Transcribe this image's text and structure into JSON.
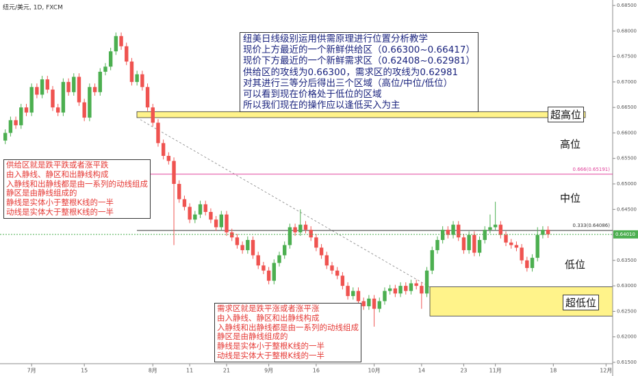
{
  "chart_data": {
    "type": "candlestick",
    "title": "纽元/美元, 1D, FXCM",
    "open": [
      0.6585,
      0.66,
      0.6625,
      0.6615,
      0.665,
      0.664,
      0.669,
      0.6675,
      0.6705,
      0.6685,
      0.665,
      0.664,
      0.67,
      0.668,
      0.671,
      0.666,
      0.663,
      0.669,
      0.668,
      0.672,
      0.673,
      0.676,
      0.679,
      0.677,
      0.674,
      0.67,
      0.6715,
      0.669,
      0.665,
      0.662,
      0.658,
      0.6555,
      0.6545,
      0.65,
      0.647,
      0.6455,
      0.643,
      0.644,
      0.646,
      0.6445,
      0.643,
      0.6415,
      0.644,
      0.6405,
      0.6395,
      0.638,
      0.637,
      0.639,
      0.636,
      0.634,
      0.633,
      0.631,
      0.6345,
      0.636,
      0.638,
      0.6415,
      0.6405,
      0.642,
      0.641,
      0.6395,
      0.6375,
      0.636,
      0.634,
      0.633,
      0.632,
      0.63,
      0.628,
      0.629,
      0.627,
      0.626,
      0.6275,
      0.6255,
      0.627,
      0.629,
      0.6295,
      0.6285,
      0.63,
      0.629,
      0.6305,
      0.63,
      0.6285,
      0.633,
      0.637,
      0.639,
      0.641,
      0.64,
      0.642,
      0.6395,
      0.637,
      0.64,
      0.6365,
      0.639,
      0.641,
      0.6415,
      0.642,
      0.64,
      0.6385,
      0.638,
      0.6375,
      0.635,
      0.6335,
      0.6355,
      0.64,
      0.641
    ],
    "high": [
      0.6607,
      0.6632,
      0.6632,
      0.6657,
      0.6657,
      0.6697,
      0.6697,
      0.6712,
      0.6712,
      0.6692,
      0.6657,
      0.6707,
      0.6707,
      0.6717,
      0.6717,
      0.6667,
      0.6697,
      0.6697,
      0.6727,
      0.6737,
      0.6767,
      0.6797,
      0.6797,
      0.6777,
      0.6747,
      0.6722,
      0.6722,
      0.6697,
      0.6657,
      0.6627,
      0.6587,
      0.6562,
      0.6552,
      0.6507,
      0.6477,
      0.6462,
      0.6447,
      0.6467,
      0.6467,
      0.6452,
      0.6437,
      0.6447,
      0.6447,
      0.6412,
      0.6402,
      0.6387,
      0.6397,
      0.6397,
      0.6367,
      0.6347,
      0.6337,
      0.6352,
      0.6367,
      0.6387,
      0.6422,
      0.6422,
      0.645,
      0.6427,
      0.6417,
      0.6402,
      0.6382,
      0.6367,
      0.6347,
      0.6337,
      0.6327,
      0.6307,
      0.6297,
      0.6297,
      0.6277,
      0.6282,
      0.6282,
      0.6277,
      0.6297,
      0.6302,
      0.6302,
      0.6307,
      0.6307,
      0.6312,
      0.6312,
      0.6307,
      0.6337,
      0.6377,
      0.6397,
      0.6417,
      0.6417,
      0.6427,
      0.6427,
      0.6402,
      0.6407,
      0.6407,
      0.6397,
      0.6417,
      0.644,
      0.6465,
      0.6427,
      0.6407,
      0.6392,
      0.6387,
      0.6382,
      0.6357,
      0.6362,
      0.6415,
      0.6417,
      0.6417
    ],
    "low": [
      0.6578,
      0.6593,
      0.6608,
      0.6608,
      0.6633,
      0.6633,
      0.6668,
      0.6668,
      0.6678,
      0.6643,
      0.6633,
      0.6633,
      0.6673,
      0.6673,
      0.6653,
      0.6623,
      0.6623,
      0.6673,
      0.6673,
      0.6713,
      0.6723,
      0.6753,
      0.6763,
      0.6733,
      0.6693,
      0.6693,
      0.6683,
      0.6643,
      0.6613,
      0.6573,
      0.6548,
      0.6538,
      0.638,
      0.6463,
      0.6448,
      0.6423,
      0.6423,
      0.6433,
      0.6438,
      0.6423,
      0.6408,
      0.6408,
      0.6398,
      0.6388,
      0.6373,
      0.6363,
      0.6363,
      0.6353,
      0.6333,
      0.6323,
      0.6303,
      0.6303,
      0.6338,
      0.6353,
      0.6373,
      0.6398,
      0.6398,
      0.6403,
      0.6388,
      0.6368,
      0.6353,
      0.6333,
      0.6323,
      0.6313,
      0.6293,
      0.6273,
      0.6273,
      0.6263,
      0.6253,
      0.6253,
      0.622,
      0.6248,
      0.6263,
      0.6283,
      0.6278,
      0.6278,
      0.6283,
      0.6283,
      0.6293,
      0.6255,
      0.6278,
      0.6323,
      0.6363,
      0.6383,
      0.6393,
      0.6393,
      0.6388,
      0.6363,
      0.6363,
      0.6358,
      0.6358,
      0.6383,
      0.6403,
      0.6408,
      0.6393,
      0.6378,
      0.6373,
      0.6368,
      0.6343,
      0.6328,
      0.6328,
      0.6348,
      0.6393,
      0.6394
    ],
    "close": [
      0.66,
      0.6625,
      0.6615,
      0.665,
      0.664,
      0.669,
      0.6675,
      0.6705,
      0.6685,
      0.665,
      0.664,
      0.67,
      0.668,
      0.671,
      0.666,
      0.663,
      0.669,
      0.668,
      0.672,
      0.673,
      0.676,
      0.679,
      0.677,
      0.674,
      0.67,
      0.6715,
      0.669,
      0.665,
      0.662,
      0.658,
      0.6555,
      0.6545,
      0.65,
      0.647,
      0.6455,
      0.643,
      0.644,
      0.646,
      0.6445,
      0.643,
      0.6415,
      0.644,
      0.6405,
      0.6395,
      0.638,
      0.637,
      0.639,
      0.636,
      0.634,
      0.633,
      0.631,
      0.6345,
      0.636,
      0.638,
      0.6415,
      0.6405,
      0.642,
      0.641,
      0.6395,
      0.6375,
      0.636,
      0.634,
      0.633,
      0.632,
      0.63,
      0.628,
      0.629,
      0.627,
      0.626,
      0.6275,
      0.6255,
      0.627,
      0.629,
      0.6295,
      0.6285,
      0.63,
      0.629,
      0.6305,
      0.63,
      0.6285,
      0.633,
      0.637,
      0.639,
      0.641,
      0.64,
      0.642,
      0.6395,
      0.637,
      0.64,
      0.6365,
      0.639,
      0.641,
      0.6415,
      0.642,
      0.64,
      0.6385,
      0.638,
      0.6375,
      0.635,
      0.6335,
      0.6355,
      0.64,
      0.641,
      0.6401
    ],
    "up_color": "#4caf50",
    "down_color": "#ef5350",
    "xlim": [
      -1,
      115
    ],
    "xticks": [
      {
        "value": 5,
        "label": "7月"
      },
      {
        "value": 15,
        "label": "15"
      },
      {
        "value": 28,
        "label": "8月"
      },
      {
        "value": 35,
        "label": "11"
      },
      {
        "value": 42,
        "label": "21"
      },
      {
        "value": 50,
        "label": "9月"
      },
      {
        "value": 59,
        "label": "16"
      },
      {
        "value": 70,
        "label": "10月"
      },
      {
        "value": 79,
        "label": "14"
      },
      {
        "value": 87,
        "label": "23"
      },
      {
        "value": 93,
        "label": "11月"
      },
      {
        "value": 104,
        "label": "18"
      },
      {
        "value": 114,
        "label": "12月"
      }
    ],
    "ylim": [
      0.615,
      0.685
    ],
    "yticks": [
      {
        "value": 0.615,
        "label": "0.61500"
      },
      {
        "value": 0.62,
        "label": "0.62000"
      },
      {
        "value": 0.625,
        "label": "0.62500"
      },
      {
        "value": 0.63,
        "label": "0.63000"
      },
      {
        "value": 0.635,
        "label": "0.63500"
      },
      {
        "value": 0.64,
        "label": "0.64000"
      },
      {
        "value": 0.645,
        "label": "0.64500"
      },
      {
        "value": 0.65,
        "label": "0.65000"
      },
      {
        "value": 0.655,
        "label": "0.65500"
      },
      {
        "value": 0.66,
        "label": "0.66000"
      },
      {
        "value": 0.665,
        "label": "0.66500"
      },
      {
        "value": 0.67,
        "label": "0.67000"
      },
      {
        "value": 0.675,
        "label": "0.67500"
      },
      {
        "value": 0.68,
        "label": "0.68000"
      },
      {
        "value": 0.685,
        "label": "0.68500"
      }
    ],
    "levels": [
      {
        "value": 0.65191,
        "label": "0.666(0.65191)",
        "color": "#e0409a"
      },
      {
        "value": 0.64086,
        "label": "0.333(0.64086)",
        "color": "#333333"
      }
    ],
    "last_price": {
      "value": 0.6401,
      "label": "0.64010",
      "color": "#4caf50"
    },
    "zones": [
      {
        "low": 0.663,
        "high": 0.66417,
        "color": "#fff176"
      },
      {
        "low": 0.62408,
        "high": 0.62981,
        "color": "#fff176"
      }
    ],
    "zone_labels": [
      "超高位",
      "高位",
      "中位",
      "低位",
      "超低位"
    ],
    "notes": {
      "analysis": [
        "纽美日线级别运用供需原理进行位置分析教学",
        "现价上方最近的一个新鲜供给区（0.66300~0.66417）",
        "现价下方最近的一个新鲜需求区（0.62408~0.62981）",
        "供给区的攻线为0.66300，需求区的攻线为0.62981",
        "对其进行三等分后得出三个区域（高位/中位/低位）",
        "可以看到现在价格处于低位的区域",
        "所以我们现在的操作应以逢低买入为主"
      ],
      "supply": [
        "供给区就是跌平跌或者涨平跌",
        "由入静线、静区和出静线构成",
        "入静线和出静线都是由一系列的动线组成",
        "静区是由静线组成的",
        "静线是实体小于整根K线的一半",
        "动线是实体大于整根K线的一半"
      ],
      "demand": [
        "需求区就是跌平涨或者涨平涨",
        "由入静线、静区和出静线构成",
        "入静线和出静线都是由一系列的动线组成",
        "静区是由静线组成的",
        "静线是实体小于整根K线的一半",
        "动线是实体大于整根K线的一半"
      ]
    }
  }
}
